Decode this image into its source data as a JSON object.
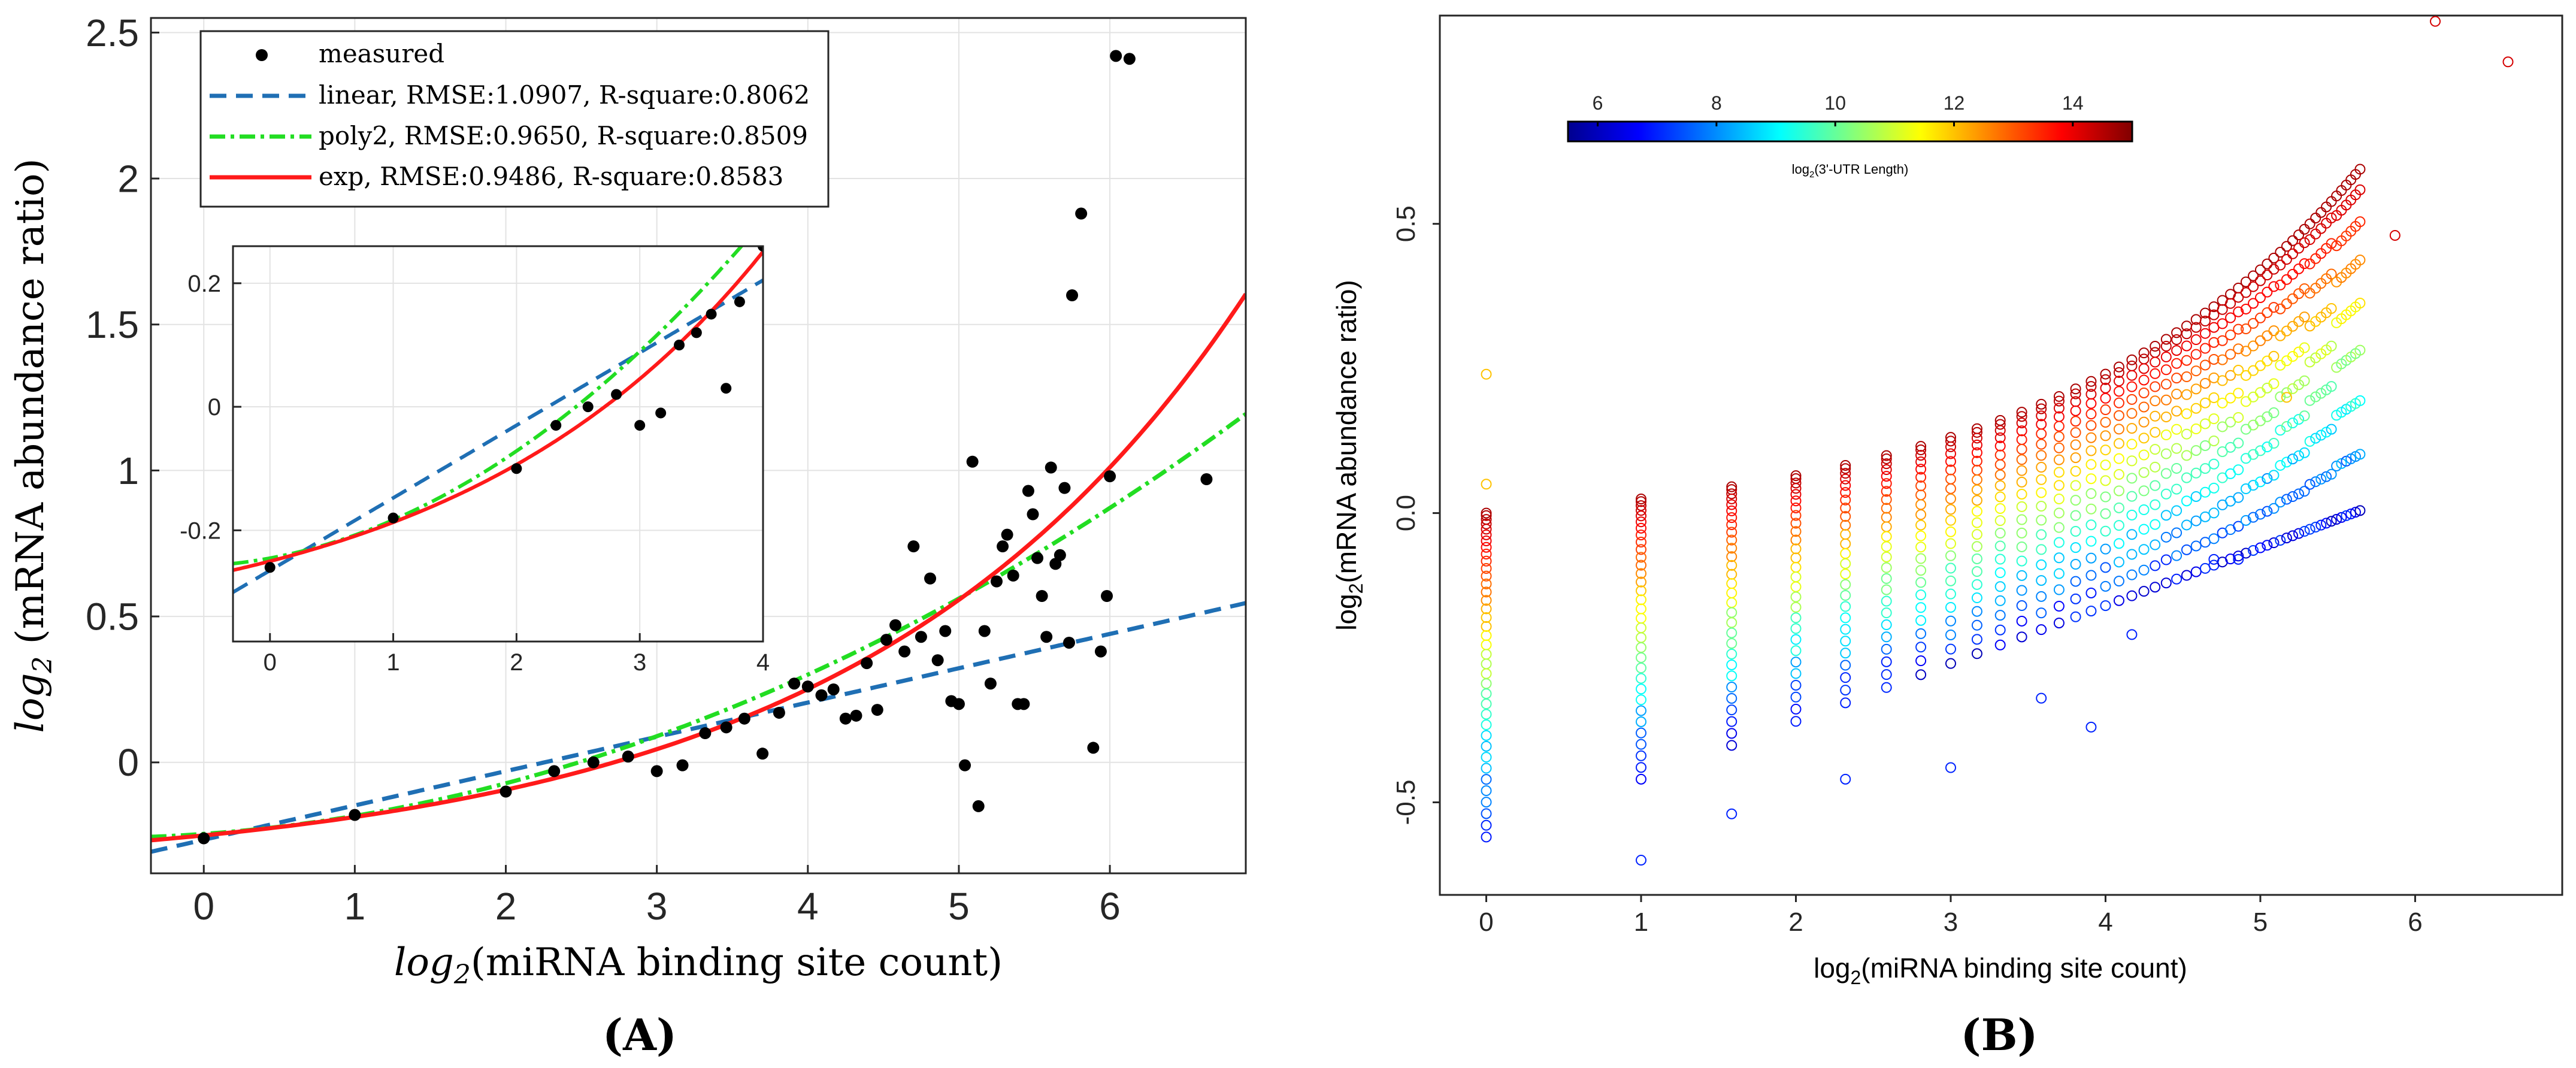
{
  "chart_data": [
    {
      "panel_label": "(A)",
      "type": "scatter",
      "xlabel_math": "log",
      "xlabel_sub": "2",
      "xlabel_text": "(miRNA binding site count)",
      "ylabel_math": "log",
      "ylabel_sub": "2",
      "ylabel_text": " (mRNA abundance ratio)",
      "xlim": [
        -0.35,
        6.9
      ],
      "ylim": [
        -0.38,
        2.55
      ],
      "xticks": [
        0,
        1,
        2,
        3,
        4,
        5,
        6
      ],
      "yticks": [
        0,
        0.5,
        1,
        1.5,
        2,
        2.5
      ],
      "grid": true,
      "legend_position": "top-left",
      "legend": [
        {
          "label": "measured",
          "kind": "marker",
          "color": "#000000"
        },
        {
          "label": "linear, RMSE:1.0907, R-square:0.8062",
          "kind": "dashed",
          "color": "#1f6fb4"
        },
        {
          "label": "poly2, RMSE:0.9650, R-square:0.8509",
          "kind": "dashdot",
          "color": "#22dd22"
        },
        {
          "label": "exp, RMSE:0.9486, R-square:0.8583",
          "kind": "solid",
          "color": "#ff1a1a"
        }
      ],
      "series": [
        {
          "name": "measured",
          "points": [
            [
              0,
              -0.26
            ],
            [
              1,
              -0.18
            ],
            [
              2,
              -0.1
            ],
            [
              2.32,
              -0.03
            ],
            [
              2.58,
              0.0
            ],
            [
              2.81,
              0.02
            ],
            [
              3.0,
              -0.03
            ],
            [
              3.17,
              -0.01
            ],
            [
              3.32,
              0.1
            ],
            [
              3.46,
              0.12
            ],
            [
              3.58,
              0.15
            ],
            [
              3.7,
              0.03
            ],
            [
              3.81,
              0.17
            ],
            [
              3.91,
              0.27
            ],
            [
              4.0,
              0.26
            ],
            [
              4.09,
              0.23
            ],
            [
              4.17,
              0.25
            ],
            [
              4.25,
              0.15
            ],
            [
              4.32,
              0.16
            ],
            [
              4.39,
              0.34
            ],
            [
              4.46,
              0.18
            ],
            [
              4.52,
              0.42
            ],
            [
              4.58,
              0.47
            ],
            [
              4.64,
              0.38
            ],
            [
              4.7,
              0.74
            ],
            [
              4.75,
              0.43
            ],
            [
              4.81,
              0.63
            ],
            [
              4.86,
              0.35
            ],
            [
              4.91,
              0.45
            ],
            [
              4.95,
              0.21
            ],
            [
              5.0,
              0.2
            ],
            [
              5.04,
              -0.01
            ],
            [
              5.09,
              1.03
            ],
            [
              5.13,
              -0.15
            ],
            [
              5.17,
              0.45
            ],
            [
              5.21,
              0.27
            ],
            [
              5.25,
              0.62
            ],
            [
              5.29,
              0.74
            ],
            [
              5.32,
              0.78
            ],
            [
              5.36,
              0.64
            ],
            [
              5.39,
              0.2
            ],
            [
              5.43,
              0.2
            ],
            [
              5.46,
              0.93
            ],
            [
              5.49,
              0.85
            ],
            [
              5.52,
              0.7
            ],
            [
              5.55,
              0.57
            ],
            [
              5.58,
              0.43
            ],
            [
              5.61,
              1.01
            ],
            [
              5.64,
              0.68
            ],
            [
              5.67,
              0.71
            ],
            [
              5.7,
              0.94
            ],
            [
              5.73,
              0.41
            ],
            [
              5.75,
              1.6
            ],
            [
              5.81,
              1.88
            ],
            [
              5.89,
              0.05
            ],
            [
              5.94,
              0.38
            ],
            [
              5.98,
              0.57
            ],
            [
              6.0,
              0.98
            ],
            [
              6.04,
              2.42
            ],
            [
              6.13,
              2.41
            ],
            [
              6.64,
              0.97
            ]
          ]
        },
        {
          "name": "linear",
          "intercept": -0.265,
          "slope": 0.1175
        },
        {
          "name": "poly2",
          "a": -0.245,
          "b": 0.037,
          "c": 0.02485
        },
        {
          "name": "exp",
          "a": 0.13,
          "b": 0.395,
          "c": -0.38
        }
      ],
      "inset": {
        "xlim": [
          -0.3,
          4.0
        ],
        "ylim": [
          -0.38,
          0.26
        ],
        "xticks": [
          0,
          1,
          2,
          3,
          4
        ],
        "yticks": [
          -0.2,
          0,
          0.2
        ],
        "ytick_labels": [
          "-0.2",
          "0",
          "0.2"
        ],
        "grid": true
      }
    },
    {
      "panel_label": "(B)",
      "type": "scatter",
      "xlabel_pre": "log",
      "xlabel_sub": "2",
      "xlabel_text": "(miRNA binding site count)",
      "ylabel_pre": "log",
      "ylabel_sub": "2",
      "ylabel_text": "(mRNA abundance ratio)",
      "xlim": [
        -0.3,
        6.95
      ],
      "ylim": [
        -0.66,
        0.86
      ],
      "xticks": [
        0,
        1,
        2,
        3,
        4,
        5,
        6
      ],
      "yticks": [
        -0.5,
        0.0,
        0.5
      ],
      "ytick_labels": [
        "-0.5",
        "0.0",
        "0.5"
      ],
      "grid": false,
      "colorbar": {
        "label_pre": "log",
        "label_sub": "2",
        "label_text": "(3'-UTR Length)",
        "range": [
          5.5,
          15.0
        ],
        "ticks": [
          6,
          8,
          10,
          12,
          14
        ],
        "colormap": "jet"
      },
      "x_positions": [
        0,
        1,
        1.585,
        2,
        2.32,
        2.585,
        2.807,
        3,
        3.17,
        3.32,
        3.459,
        3.585,
        3.7,
        3.807,
        3.907,
        4,
        4.087,
        4.17,
        4.248,
        4.32,
        4.392,
        4.459,
        4.524,
        4.585,
        4.644,
        4.7,
        4.755,
        4.807,
        4.858,
        4.907,
        4.954,
        5,
        5.044,
        5.087,
        5.129,
        5.17,
        5.209,
        5.248,
        5.285,
        5.32,
        5.357,
        5.392,
        5.426,
        5.459,
        5.492,
        5.524,
        5.555,
        5.585,
        5.615,
        5.644
      ],
      "upper_envelope_exp": {
        "a": 0.0376,
        "b": 0.5,
        "c": -0.0376
      },
      "outliers": [
        [
          0,
          0.24
        ],
        [
          0,
          0.05
        ],
        [
          1,
          -0.6
        ],
        [
          1.585,
          -0.52
        ],
        [
          2.32,
          -0.46
        ],
        [
          3,
          -0.44
        ],
        [
          3.585,
          -0.32
        ],
        [
          3.907,
          -0.37
        ],
        [
          4.17,
          -0.21
        ],
        [
          4.7,
          -0.08
        ],
        [
          4.858,
          -0.08
        ],
        [
          5.17,
          0.2
        ],
        [
          5.87,
          0.48
        ],
        [
          6.13,
          0.85
        ],
        [
          6.6,
          0.78
        ]
      ]
    }
  ]
}
